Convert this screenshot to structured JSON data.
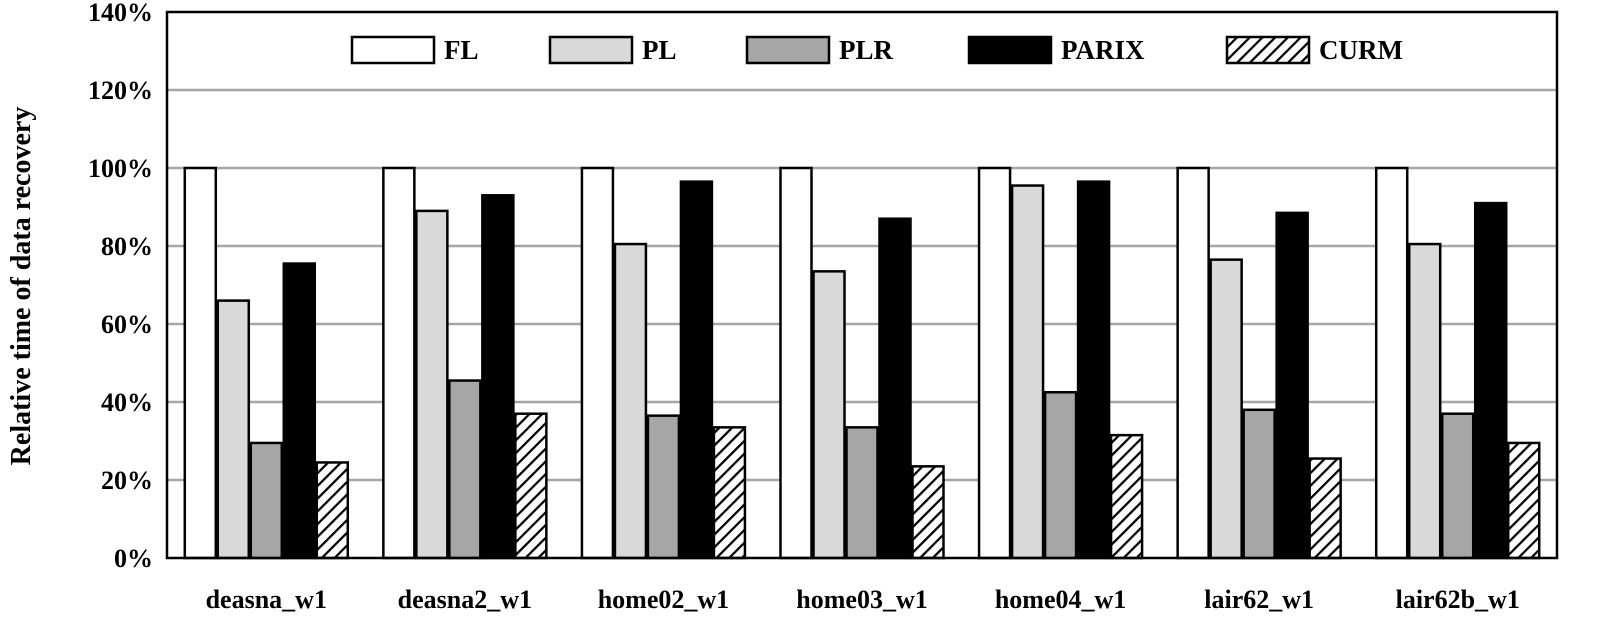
{
  "chart_data": {
    "type": "bar",
    "title": "",
    "xlabel": "",
    "ylabel": "Relative time of data recovery",
    "ylim": [
      0,
      140
    ],
    "ytick_step": 20,
    "ytick_labels": [
      "0%",
      "20%",
      "40%",
      "60%",
      "80%",
      "100%",
      "120%",
      "140%"
    ],
    "grid": true,
    "legend_position": "top",
    "categories": [
      "deasna_w1",
      "deasna2_w1",
      "home02_w1",
      "home03_w1",
      "home04_w1",
      "lair62_w1",
      "lair62b_w1"
    ],
    "series": [
      {
        "name": "FL",
        "fill": "white",
        "color": "#ffffff",
        "values": [
          100,
          100,
          100,
          100,
          100,
          100,
          100
        ]
      },
      {
        "name": "PL",
        "fill": "lightgray",
        "color": "#d9d9d9",
        "values": [
          66,
          89,
          80.5,
          73.5,
          95.5,
          76.5,
          80.5
        ]
      },
      {
        "name": "PLR",
        "fill": "gray",
        "color": "#a6a6a6",
        "values": [
          29.5,
          45.5,
          36.5,
          33.5,
          42.5,
          38,
          37
        ]
      },
      {
        "name": "PARIX",
        "fill": "black",
        "color": "#000000",
        "values": [
          75.5,
          93,
          96.5,
          87,
          96.5,
          88.5,
          91
        ]
      },
      {
        "name": "CURM",
        "fill": "hatched",
        "color": "#ffffff",
        "values": [
          24.5,
          37,
          33.5,
          23.5,
          31.5,
          25.5,
          29.5
        ]
      }
    ]
  }
}
